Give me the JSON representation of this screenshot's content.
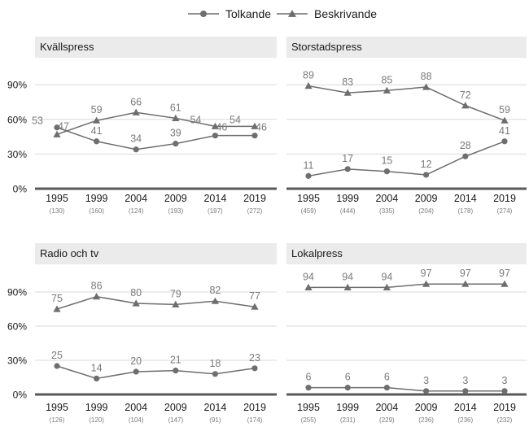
{
  "legend": [
    {
      "label": "Tolkande",
      "marker": "circle"
    },
    {
      "label": "Beskrivande",
      "marker": "triangle"
    }
  ],
  "colors": {
    "line": "#6e6e6e",
    "strip": "#ebebeb",
    "grid": "#d9d9d9",
    "axis": "#595959",
    "label": "#7a7a7a",
    "tick": "#1a1a1a"
  },
  "y_ticks": [
    "0%",
    "30%",
    "60%",
    "90%"
  ],
  "chart_data": [
    {
      "type": "line",
      "title": "Kvällspress",
      "categories": [
        "1995",
        "1999",
        "2004",
        "2009",
        "2014",
        "2019"
      ],
      "n": [
        "(130)",
        "(160)",
        "(124)",
        "(193)",
        "(197)",
        "(272)"
      ],
      "ylim": [
        0,
        100
      ],
      "series": [
        {
          "name": "Tolkande",
          "values": [
            53,
            41,
            34,
            39,
            46,
            46
          ]
        },
        {
          "name": "Beskrivande",
          "values": [
            47,
            59,
            66,
            61,
            54,
            54
          ]
        }
      ]
    },
    {
      "type": "line",
      "title": "Storstadspress",
      "categories": [
        "1995",
        "1999",
        "2004",
        "2009",
        "2014",
        "2019"
      ],
      "n": [
        "(459)",
        "(444)",
        "(335)",
        "(204)",
        "(178)",
        "(274)"
      ],
      "ylim": [
        0,
        100
      ],
      "series": [
        {
          "name": "Tolkande",
          "values": [
            11,
            17,
            15,
            12,
            28,
            41
          ]
        },
        {
          "name": "Beskrivande",
          "values": [
            89,
            83,
            85,
            88,
            72,
            59
          ]
        }
      ]
    },
    {
      "type": "line",
      "title": "Radio och tv",
      "categories": [
        "1995",
        "1999",
        "2004",
        "2009",
        "2014",
        "2019"
      ],
      "n": [
        "(126)",
        "(120)",
        "(104)",
        "(147)",
        "(91)",
        "(174)"
      ],
      "ylim": [
        0,
        100
      ],
      "series": [
        {
          "name": "Tolkande",
          "values": [
            25,
            14,
            20,
            21,
            18,
            23
          ]
        },
        {
          "name": "Beskrivande",
          "values": [
            75,
            86,
            80,
            79,
            82,
            77
          ]
        }
      ]
    },
    {
      "type": "line",
      "title": "Lokalpress",
      "categories": [
        "1995",
        "1999",
        "2004",
        "2009",
        "2014",
        "2019"
      ],
      "n": [
        "(255)",
        "(231)",
        "(229)",
        "(236)",
        "(236)",
        "(232)"
      ],
      "ylim": [
        0,
        100
      ],
      "series": [
        {
          "name": "Tolkande",
          "values": [
            6,
            6,
            6,
            3,
            3,
            3
          ]
        },
        {
          "name": "Beskrivande",
          "values": [
            94,
            94,
            94,
            97,
            97,
            97
          ]
        }
      ]
    }
  ]
}
